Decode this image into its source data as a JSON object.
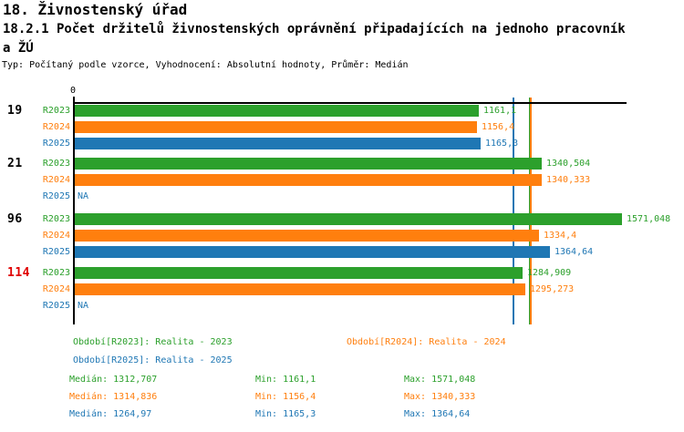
{
  "page": {
    "title": "18. Živnostenský úřad",
    "subtitle": "18.2.1 Počet držitelů živnostenských oprávnění připadajících na jednoho pracovník",
    "subtitle_wrap": "a ŽÚ",
    "meta": "Typ: Počítaný podle vzorce, Vyhodnocení: Absolutní hodnoty, Průměr: Medián"
  },
  "colors": {
    "r2023": "#2ca02c",
    "r2024": "#ff7f0e",
    "r2025": "#1f77b4",
    "group_default": "#000000",
    "group_alert": "#e00000",
    "axis": "#000000"
  },
  "chart_data": {
    "type": "bar",
    "orientation": "horizontal",
    "xlim": [
      0,
      1590
    ],
    "zero_label": "0",
    "grid": false,
    "series_names": [
      "R2023",
      "R2024",
      "R2025"
    ],
    "groups": [
      {
        "label": "19",
        "alert": false,
        "bars": [
          {
            "series": "R2023",
            "value": 1161.1,
            "display": "1161,1"
          },
          {
            "series": "R2024",
            "value": 1156.4,
            "display": "1156,4"
          },
          {
            "series": "R2025",
            "value": 1165.3,
            "display": "1165,3"
          }
        ]
      },
      {
        "label": "21",
        "alert": false,
        "bars": [
          {
            "series": "R2023",
            "value": 1340.504,
            "display": "1340,504"
          },
          {
            "series": "R2024",
            "value": 1340.333,
            "display": "1340,333"
          },
          {
            "series": "R2025",
            "value": null,
            "display": "NA"
          }
        ]
      },
      {
        "label": "96",
        "alert": false,
        "bars": [
          {
            "series": "R2023",
            "value": 1571.048,
            "display": "1571,048"
          },
          {
            "series": "R2024",
            "value": 1334.4,
            "display": "1334,4"
          },
          {
            "series": "R2025",
            "value": 1364.64,
            "display": "1364,64"
          }
        ]
      },
      {
        "label": "114",
        "alert": true,
        "bars": [
          {
            "series": "R2023",
            "value": 1284.909,
            "display": "1284,909"
          },
          {
            "series": "R2024",
            "value": 1295.273,
            "display": "1295,273"
          },
          {
            "series": "R2025",
            "value": null,
            "display": "NA"
          }
        ]
      }
    ],
    "median_lines": [
      {
        "series": "R2025",
        "value": 1264.97
      },
      {
        "series": "R2023",
        "value": 1312.707
      },
      {
        "series": "R2024",
        "value": 1314.836
      }
    ]
  },
  "legend": [
    {
      "series": "R2023",
      "label": "Období[R2023]: Realita - 2023",
      "row": 0,
      "col": 0
    },
    {
      "series": "R2024",
      "label": "Období[R2024]: Realita - 2024",
      "row": 0,
      "col": 1
    },
    {
      "series": "R2025",
      "label": "Období[R2025]: Realita - 2025",
      "row": 1,
      "col": 0
    }
  ],
  "stats": [
    {
      "series": "R2023",
      "median": "Medián: 1312,707",
      "min": "Min: 1161,1",
      "max": "Max: 1571,048"
    },
    {
      "series": "R2024",
      "median": "Medián: 1314,836",
      "min": "Min: 1156,4",
      "max": "Max: 1340,333"
    },
    {
      "series": "R2025",
      "median": "Medián: 1264,97",
      "min": "Min: 1165,3",
      "max": "Max: 1364,64"
    }
  ]
}
